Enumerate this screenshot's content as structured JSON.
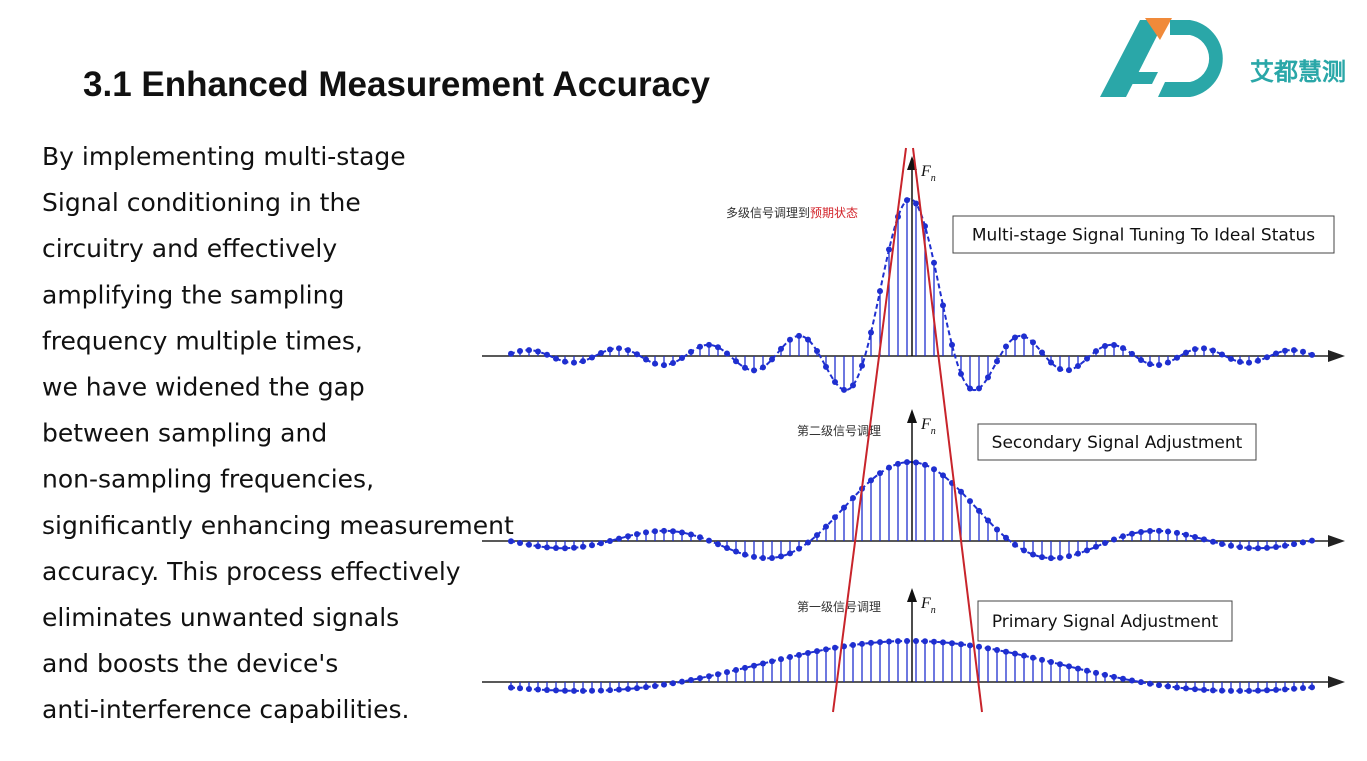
{
  "header": {
    "title": "3.1 Enhanced Measurement Accuracy",
    "logo_text": "艾都慧测"
  },
  "body": {
    "lines": [
      "By implementing multi-stage",
      "Signal conditioning in the",
      "circuitry and effectively",
      "amplifying the sampling",
      "frequency multiple times,",
      "we have widened the gap",
      "between sampling and",
      "non-sampling frequencies,",
      "significantly enhancing measurement",
      "accuracy. This process effectively",
      "eliminates unwanted signals",
      "and boosts the device's",
      "anti-interference capabilities."
    ]
  },
  "figure": {
    "stages": [
      {
        "label": "多级信号调理到",
        "label_highlight": "预期状态",
        "axis_label": "F",
        "axis_subscript": "n",
        "box": "Multi-stage Signal Tuning To Ideal Status"
      },
      {
        "label": "第二级信号调理",
        "axis_label": "F",
        "axis_subscript": "n",
        "box": "Secondary Signal Adjustment"
      },
      {
        "label": "第一级信号调理",
        "axis_label": "F",
        "axis_subscript": "n",
        "box": "Primary Signal Adjustment"
      }
    ]
  }
}
